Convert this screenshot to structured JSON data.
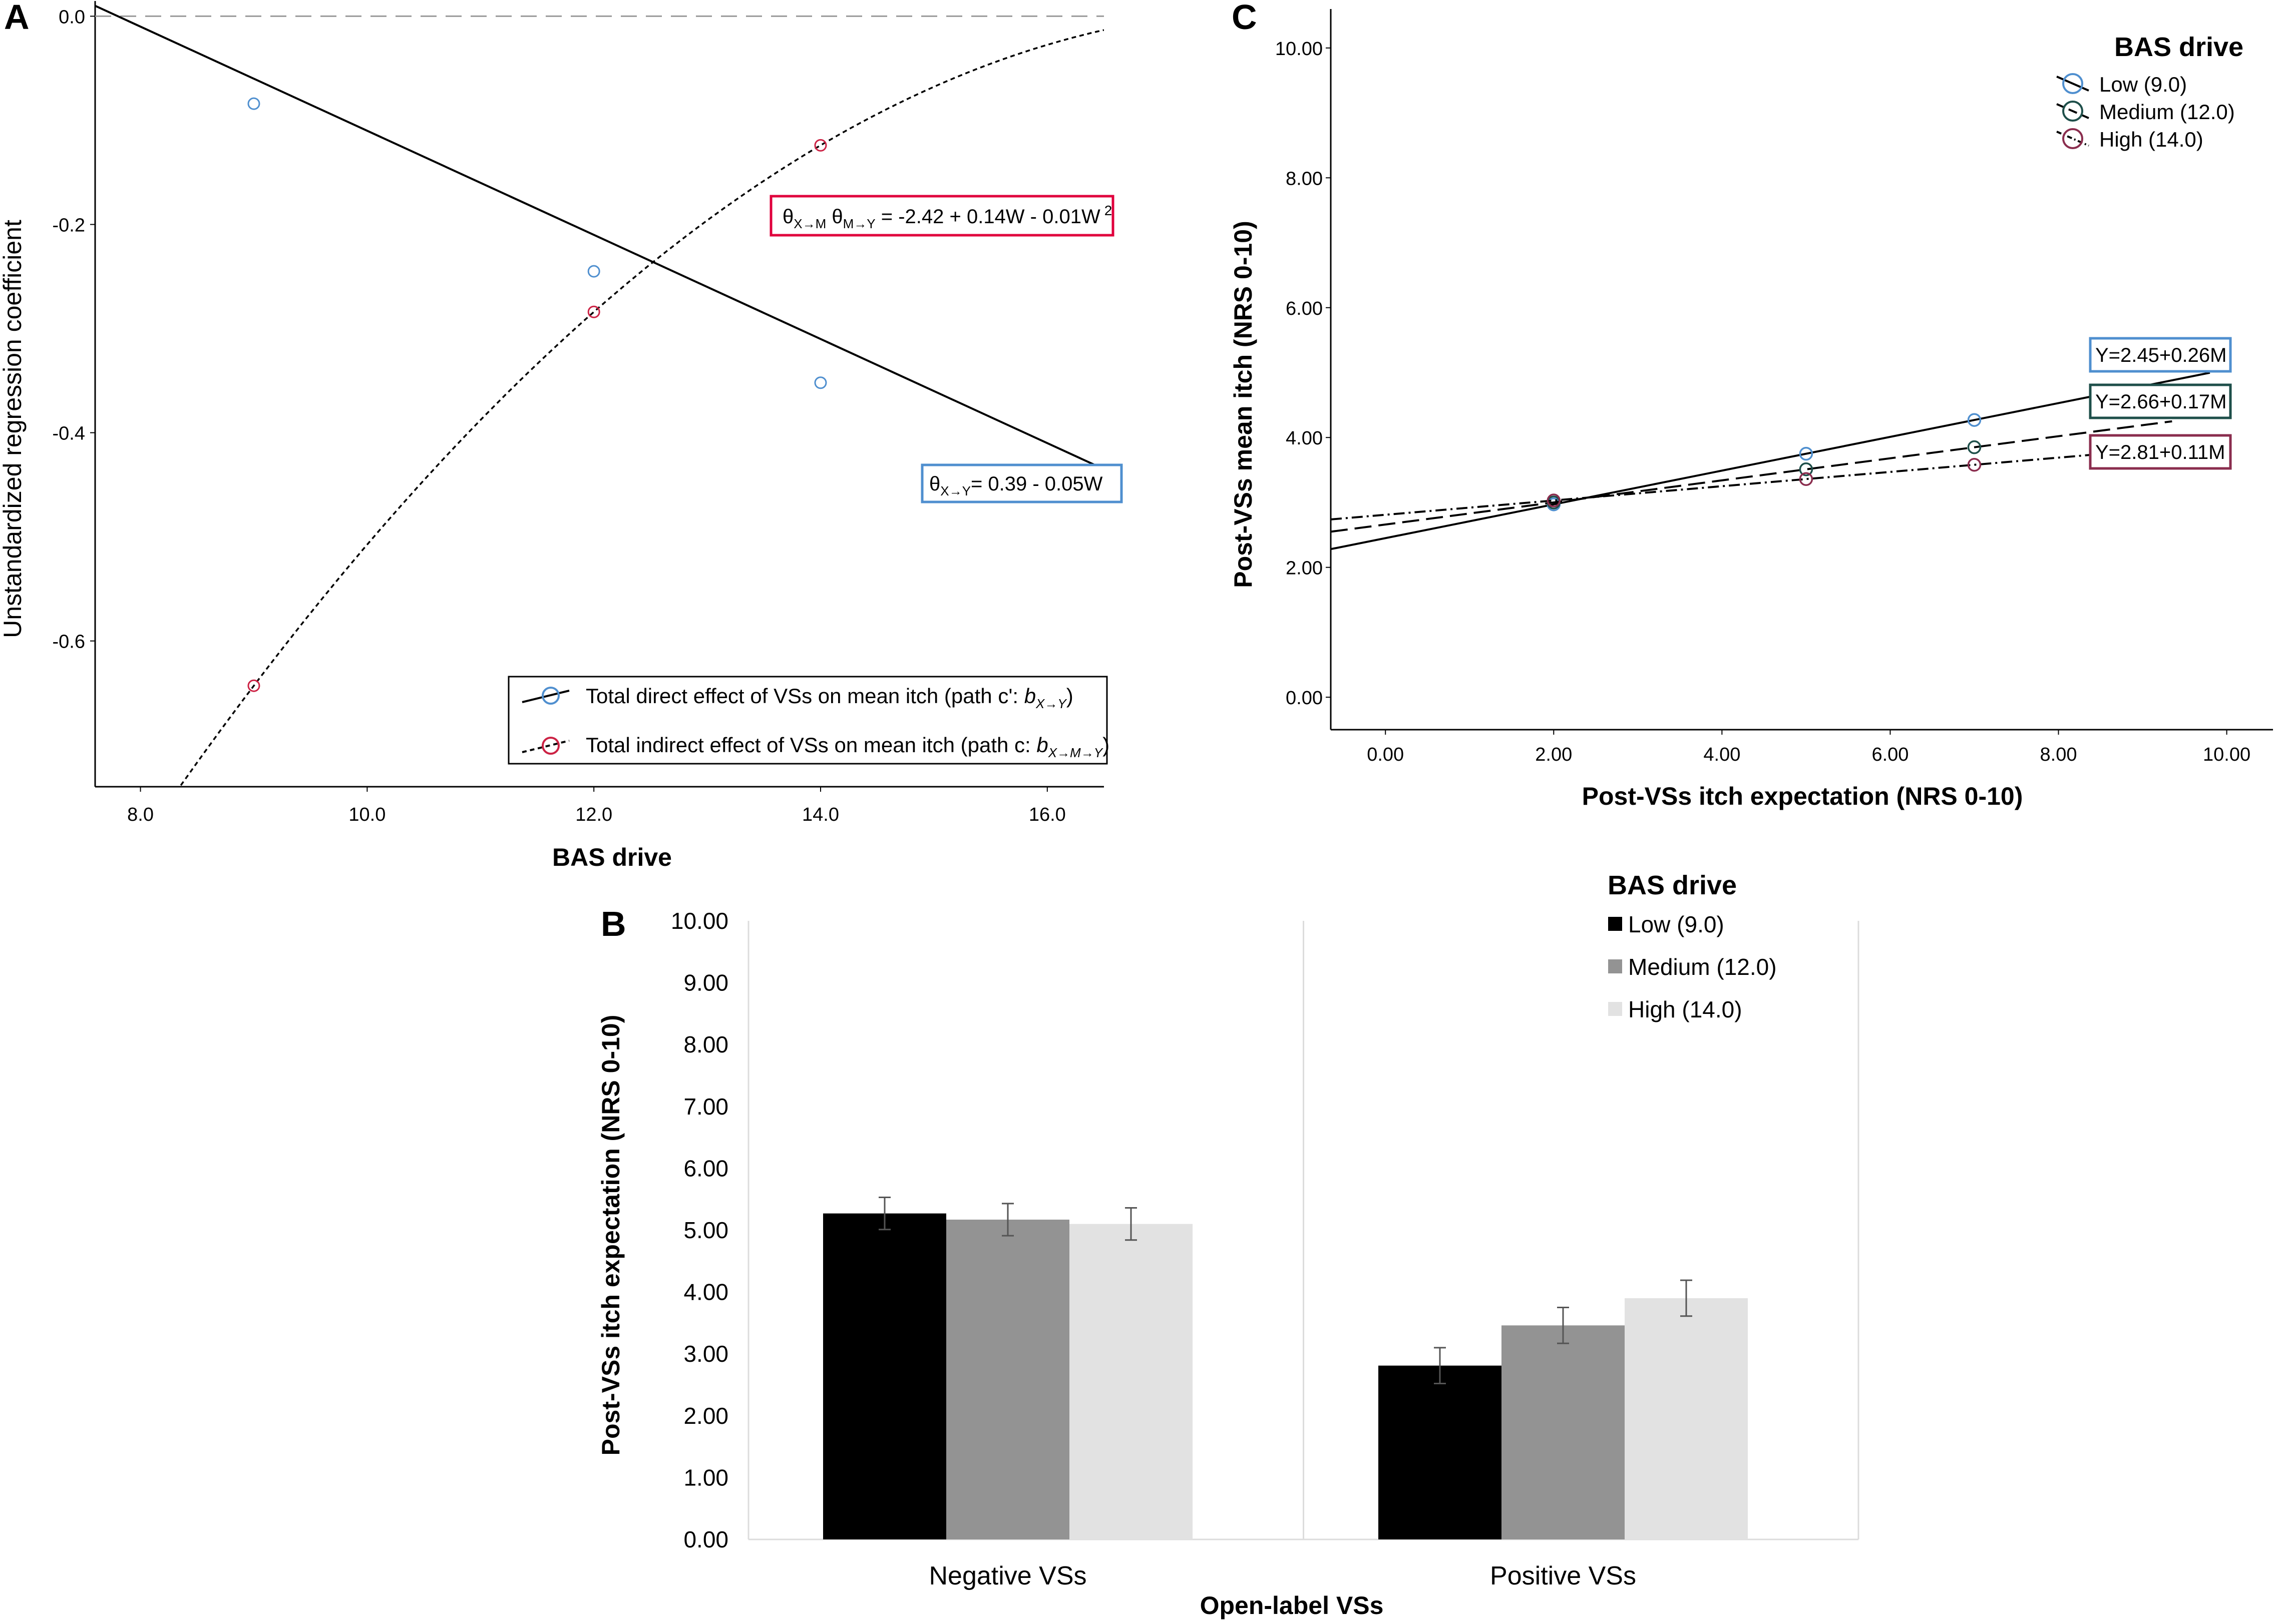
{
  "chart_data": [
    {
      "panel": "A",
      "type": "line",
      "xlabel": "BAS drive",
      "ylabel": "Unstandardized regression coefficient",
      "xlim": [
        7.6,
        16.5
      ],
      "ylim": [
        -0.74,
        0.005
      ],
      "x_ticks": [
        "8.0",
        "10.0",
        "12.0",
        "14.0",
        "16.0"
      ],
      "y_ticks": [
        "0.0",
        "-0.2",
        "-0.4",
        "-0.6"
      ],
      "reference_line": {
        "y": 0.0,
        "style": "dashed"
      },
      "series": [
        {
          "name": "Total direct effect of VSs on mean itch (path c': b X→Y)",
          "legend_plain": "Total direct effect of VSs on mean itch (path c': ",
          "legend_math": "b",
          "legend_sub": "X→Y",
          "style": "solid",
          "marker_color": "#4f8fcf",
          "equation": {
            "theta_sub": "X→Y",
            "rest": "= 0.39 - 0.05W",
            "border": "#4f8fcf"
          },
          "coefficients": {
            "intercept": 0.39,
            "slope": -0.05
          },
          "points": [
            {
              "x": 9.0,
              "y": -0.084
            },
            {
              "x": 12.0,
              "y": -0.245
            },
            {
              "x": 14.0,
              "y": -0.352
            }
          ]
        },
        {
          "name": "Total indirect effect of VSs on mean itch (path c: b X→M→Y)",
          "legend_plain": "Total indirect effect of VSs on mean itch (path c: ",
          "legend_math": "b",
          "legend_sub": "X→M→Y",
          "style": "dotted",
          "marker_color": "#cc2244",
          "equation": {
            "theta1_sub": "X→M",
            "theta2_sub": "M→Y",
            "rest": " = -2.42 + 0.14W - 0.01W",
            "sup": "2",
            "border": "#e0003c"
          },
          "points": [
            {
              "x": 9.0,
              "y": -0.643
            },
            {
              "x": 12.0,
              "y": -0.284
            },
            {
              "x": 14.0,
              "y": -0.124
            }
          ]
        }
      ]
    },
    {
      "panel": "B",
      "type": "bar",
      "title": "BAS drive",
      "xlabel": "Open-label VSs",
      "ylabel": "Post-VSs itch expectation (NRS 0-10)",
      "ylim": [
        0,
        10
      ],
      "y_ticks": [
        "0.00",
        "1.00",
        "2.00",
        "3.00",
        "4.00",
        "5.00",
        "6.00",
        "7.00",
        "8.00",
        "9.00",
        "10.00"
      ],
      "categories": [
        "Negative VSs",
        "Positive VSs"
      ],
      "series": [
        {
          "name": "Low (9.0)",
          "color": "#000000",
          "values": [
            5.27,
            2.81
          ],
          "err": [
            0.26,
            0.29
          ]
        },
        {
          "name": "Medium (12.0)",
          "color": "#939393",
          "values": [
            5.17,
            3.46
          ],
          "err": [
            0.26,
            0.29
          ]
        },
        {
          "name": "High (14.0)",
          "color": "#e2e2e2",
          "values": [
            5.1,
            3.9
          ],
          "err": [
            0.26,
            0.29
          ]
        }
      ]
    },
    {
      "panel": "C",
      "type": "line",
      "title": "BAS drive",
      "xlabel": "Post-VSs itch expectation (NRS 0-10)",
      "ylabel": "Post-VSs mean itch (NRS 0-10)",
      "xlim": [
        -0.65,
        10.55
      ],
      "ylim": [
        -0.5,
        10.6
      ],
      "x_ticks": [
        "0.00",
        "2.00",
        "4.00",
        "6.00",
        "8.00",
        "10.00"
      ],
      "y_ticks": [
        "0.00",
        "2.00",
        "4.00",
        "6.00",
        "8.00",
        "10.00"
      ],
      "series": [
        {
          "name": "Low (9.0)",
          "style": "solid",
          "marker_color": "#4f8fcf",
          "intercept": 2.45,
          "slope": 0.26,
          "label": "Y=2.45+0.26M",
          "box_color": "#4f8fcf",
          "points": [
            {
              "x": 2.0,
              "y": 2.97
            },
            {
              "x": 5.0,
              "y": 3.75
            },
            {
              "x": 7.0,
              "y": 4.27
            }
          ]
        },
        {
          "name": "Medium (12.0)",
          "style": "dashed",
          "marker_color": "#1e4f4a",
          "intercept": 2.66,
          "slope": 0.17,
          "label": "Y=2.66+0.17M",
          "box_color": "#1e4f4a",
          "points": [
            {
              "x": 2.0,
              "y": 3.0
            },
            {
              "x": 5.0,
              "y": 3.51
            },
            {
              "x": 7.0,
              "y": 3.85
            }
          ]
        },
        {
          "name": "High (14.0)",
          "style": "dashdot",
          "marker_color": "#8a2d4e",
          "intercept": 2.81,
          "slope": 0.11,
          "label": "Y=2.81+0.11M",
          "box_color": "#8a2d4e",
          "points": [
            {
              "x": 2.0,
              "y": 3.03
            },
            {
              "x": 5.0,
              "y": 3.36
            },
            {
              "x": 7.0,
              "y": 3.58
            }
          ]
        }
      ]
    }
  ]
}
